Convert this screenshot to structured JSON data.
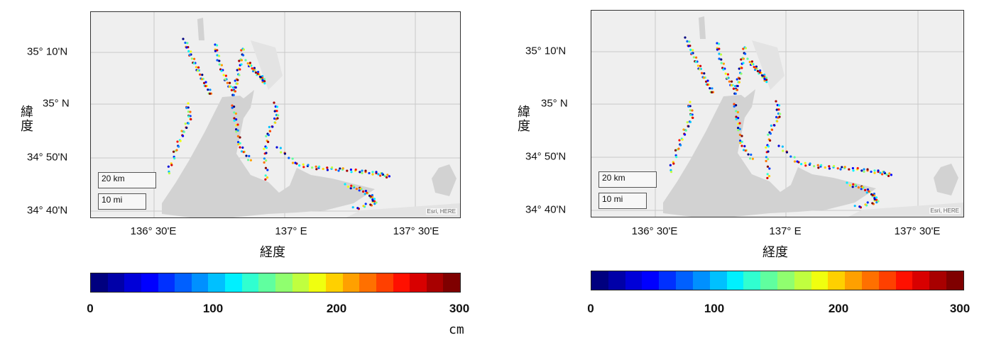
{
  "panels": [
    {
      "id": "left",
      "ylabel": "緯度",
      "xlabel": "経度",
      "yticks": [
        "35° 10'N",
        "35° N",
        "34° 50'N",
        "34° 40'N"
      ],
      "xticks": [
        "136° 30'E",
        "137° E",
        "137° 30'E"
      ],
      "scale_km": "20 km",
      "scale_mi": "10 mi",
      "attribution": "Esri, HERE",
      "colorbar_ticks": [
        "0",
        "100",
        "200",
        "300"
      ],
      "colorbar_unit": "cm"
    },
    {
      "id": "right",
      "ylabel": "緯度",
      "xlabel": "経度",
      "yticks": [
        "35° 10'N",
        "35° N",
        "34° 50'N",
        "34° 40'N"
      ],
      "xticks": [
        "136° 30'E",
        "137° E",
        "137° 30'E"
      ],
      "scale_km": "20 km",
      "scale_mi": "10 mi",
      "attribution": "Esri, HERE",
      "colorbar_ticks": [
        "0",
        "100",
        "200",
        "300"
      ],
      "colorbar_unit": ""
    }
  ],
  "colorbar": {
    "min": 0,
    "max": 300,
    "colors": [
      "#00007f",
      "#0000a8",
      "#0000d8",
      "#0000ff",
      "#0030ff",
      "#0060ff",
      "#0090ff",
      "#00c0ff",
      "#00f0ff",
      "#30ffd0",
      "#60ff9f",
      "#90ff6f",
      "#c0ff3f",
      "#f0ff0f",
      "#ffd000",
      "#ffa000",
      "#ff7000",
      "#ff4000",
      "#ff1000",
      "#d80000",
      "#a80000",
      "#7f0000"
    ]
  }
}
